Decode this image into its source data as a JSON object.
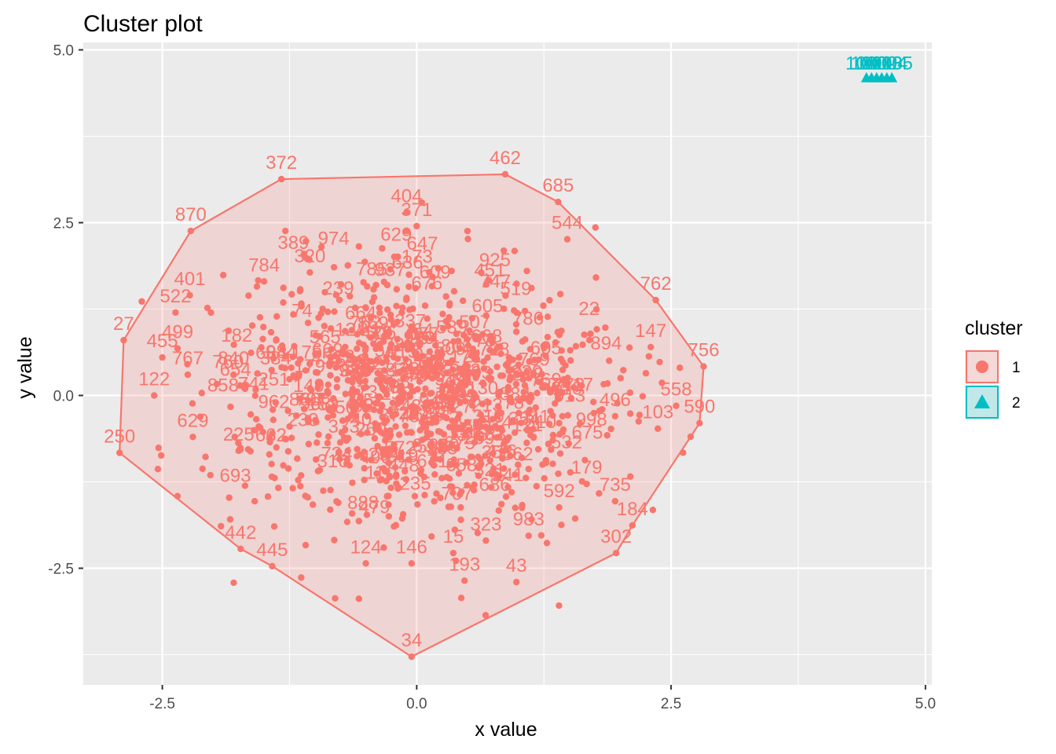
{
  "chart_data": {
    "type": "scatter",
    "title": "Cluster plot",
    "xlabel": "x value",
    "ylabel": "y value",
    "xlim": [
      -3.3,
      5.0
    ],
    "ylim": [
      -4.3,
      5.0
    ],
    "x_ticks": [
      -2.5,
      0.0,
      2.5,
      5.0
    ],
    "x_tick_labels": [
      "-2.5",
      "0.0",
      "2.5",
      "5.0"
    ],
    "y_ticks": [
      -2.5,
      0.0,
      2.5,
      5.0
    ],
    "y_tick_labels": [
      "-2.5",
      "0.0",
      "2.5",
      "5.0"
    ],
    "grid": true,
    "legend": {
      "title": "cluster",
      "placement": "right",
      "entries": [
        "1",
        "2"
      ]
    },
    "colors": {
      "cluster_1": "#F8766D",
      "cluster_2": "#00BFC4",
      "panel": "#EBEBEB",
      "grid": "#FFFFFF"
    },
    "series": [
      {
        "name": "1",
        "marker": "circle",
        "hull": [
          {
            "label": "372",
            "x": -1.33,
            "y": 3.13
          },
          {
            "label": "462",
            "x": 0.87,
            "y": 3.2
          },
          {
            "label": "685",
            "x": 1.39,
            "y": 2.8
          },
          {
            "label": "762",
            "x": 2.35,
            "y": 1.38
          },
          {
            "label": "756",
            "x": 2.82,
            "y": 0.42
          },
          {
            "label": "590",
            "x": 2.78,
            "y": -0.4
          },
          {
            "label": "184",
            "x": 2.12,
            "y": -1.88
          },
          {
            "label": "302",
            "x": 1.96,
            "y": -2.28
          },
          {
            "label": "34",
            "x": -0.05,
            "y": -3.78
          },
          {
            "label": "445",
            "x": -1.42,
            "y": -2.47
          },
          {
            "label": "442",
            "x": -1.73,
            "y": -2.22
          },
          {
            "label": "250",
            "x": -2.92,
            "y": -0.83
          },
          {
            "label": "27",
            "x": -2.88,
            "y": 0.8
          },
          {
            "label": "870",
            "x": -2.22,
            "y": 2.38
          }
        ],
        "labeled_points": [
          {
            "label": "544",
            "x": 1.48,
            "y": 2.26
          },
          {
            "label": "784",
            "x": -1.5,
            "y": 1.65
          },
          {
            "label": "320",
            "x": -1.05,
            "y": 1.78
          },
          {
            "label": "401",
            "x": -2.23,
            "y": 1.45
          },
          {
            "label": "522",
            "x": -2.37,
            "y": 1.2
          },
          {
            "label": "499",
            "x": -2.35,
            "y": 0.68
          },
          {
            "label": "404",
            "x": -0.1,
            "y": 2.65
          },
          {
            "label": "371",
            "x": 0.0,
            "y": 2.45
          },
          {
            "label": "147",
            "x": 2.3,
            "y": 0.7
          },
          {
            "label": "558",
            "x": 2.55,
            "y": -0.15
          },
          {
            "label": "103",
            "x": 2.37,
            "y": -0.48
          },
          {
            "label": "496",
            "x": 1.95,
            "y": -0.3
          },
          {
            "label": "735",
            "x": 1.95,
            "y": -1.53
          },
          {
            "label": "179",
            "x": 1.67,
            "y": -1.28
          },
          {
            "label": "592",
            "x": 1.4,
            "y": -1.62
          },
          {
            "label": "983",
            "x": 1.1,
            "y": -2.03
          },
          {
            "label": "43",
            "x": 0.98,
            "y": -2.7
          },
          {
            "label": "193",
            "x": 0.47,
            "y": -2.68
          },
          {
            "label": "15",
            "x": 0.36,
            "y": -2.28
          },
          {
            "label": "323",
            "x": 0.68,
            "y": -2.1
          },
          {
            "label": "146",
            "x": -0.05,
            "y": -2.43
          },
          {
            "label": "124",
            "x": -0.5,
            "y": -2.43
          },
          {
            "label": "629",
            "x": -2.2,
            "y": -0.6
          },
          {
            "label": "122",
            "x": -2.58,
            "y": 0.0
          },
          {
            "label": "767",
            "x": -2.25,
            "y": 0.3
          },
          {
            "label": "225",
            "x": -1.75,
            "y": -0.8
          },
          {
            "label": "840",
            "x": -1.8,
            "y": 0.3
          },
          {
            "label": "455",
            "x": -2.5,
            "y": 0.55
          }
        ]
      },
      {
        "name": "2",
        "marker": "triangle",
        "labeled_points": [
          {
            "label": "1000",
            "x": 4.42,
            "y": 4.6
          },
          {
            "label": "1001",
            "x": 4.47,
            "y": 4.6
          },
          {
            "label": "1002",
            "x": 4.52,
            "y": 4.6
          },
          {
            "label": "1003",
            "x": 4.57,
            "y": 4.6
          },
          {
            "label": "1004",
            "x": 4.62,
            "y": 4.6
          },
          {
            "label": "1005",
            "x": 4.67,
            "y": 4.6
          }
        ]
      }
    ]
  }
}
